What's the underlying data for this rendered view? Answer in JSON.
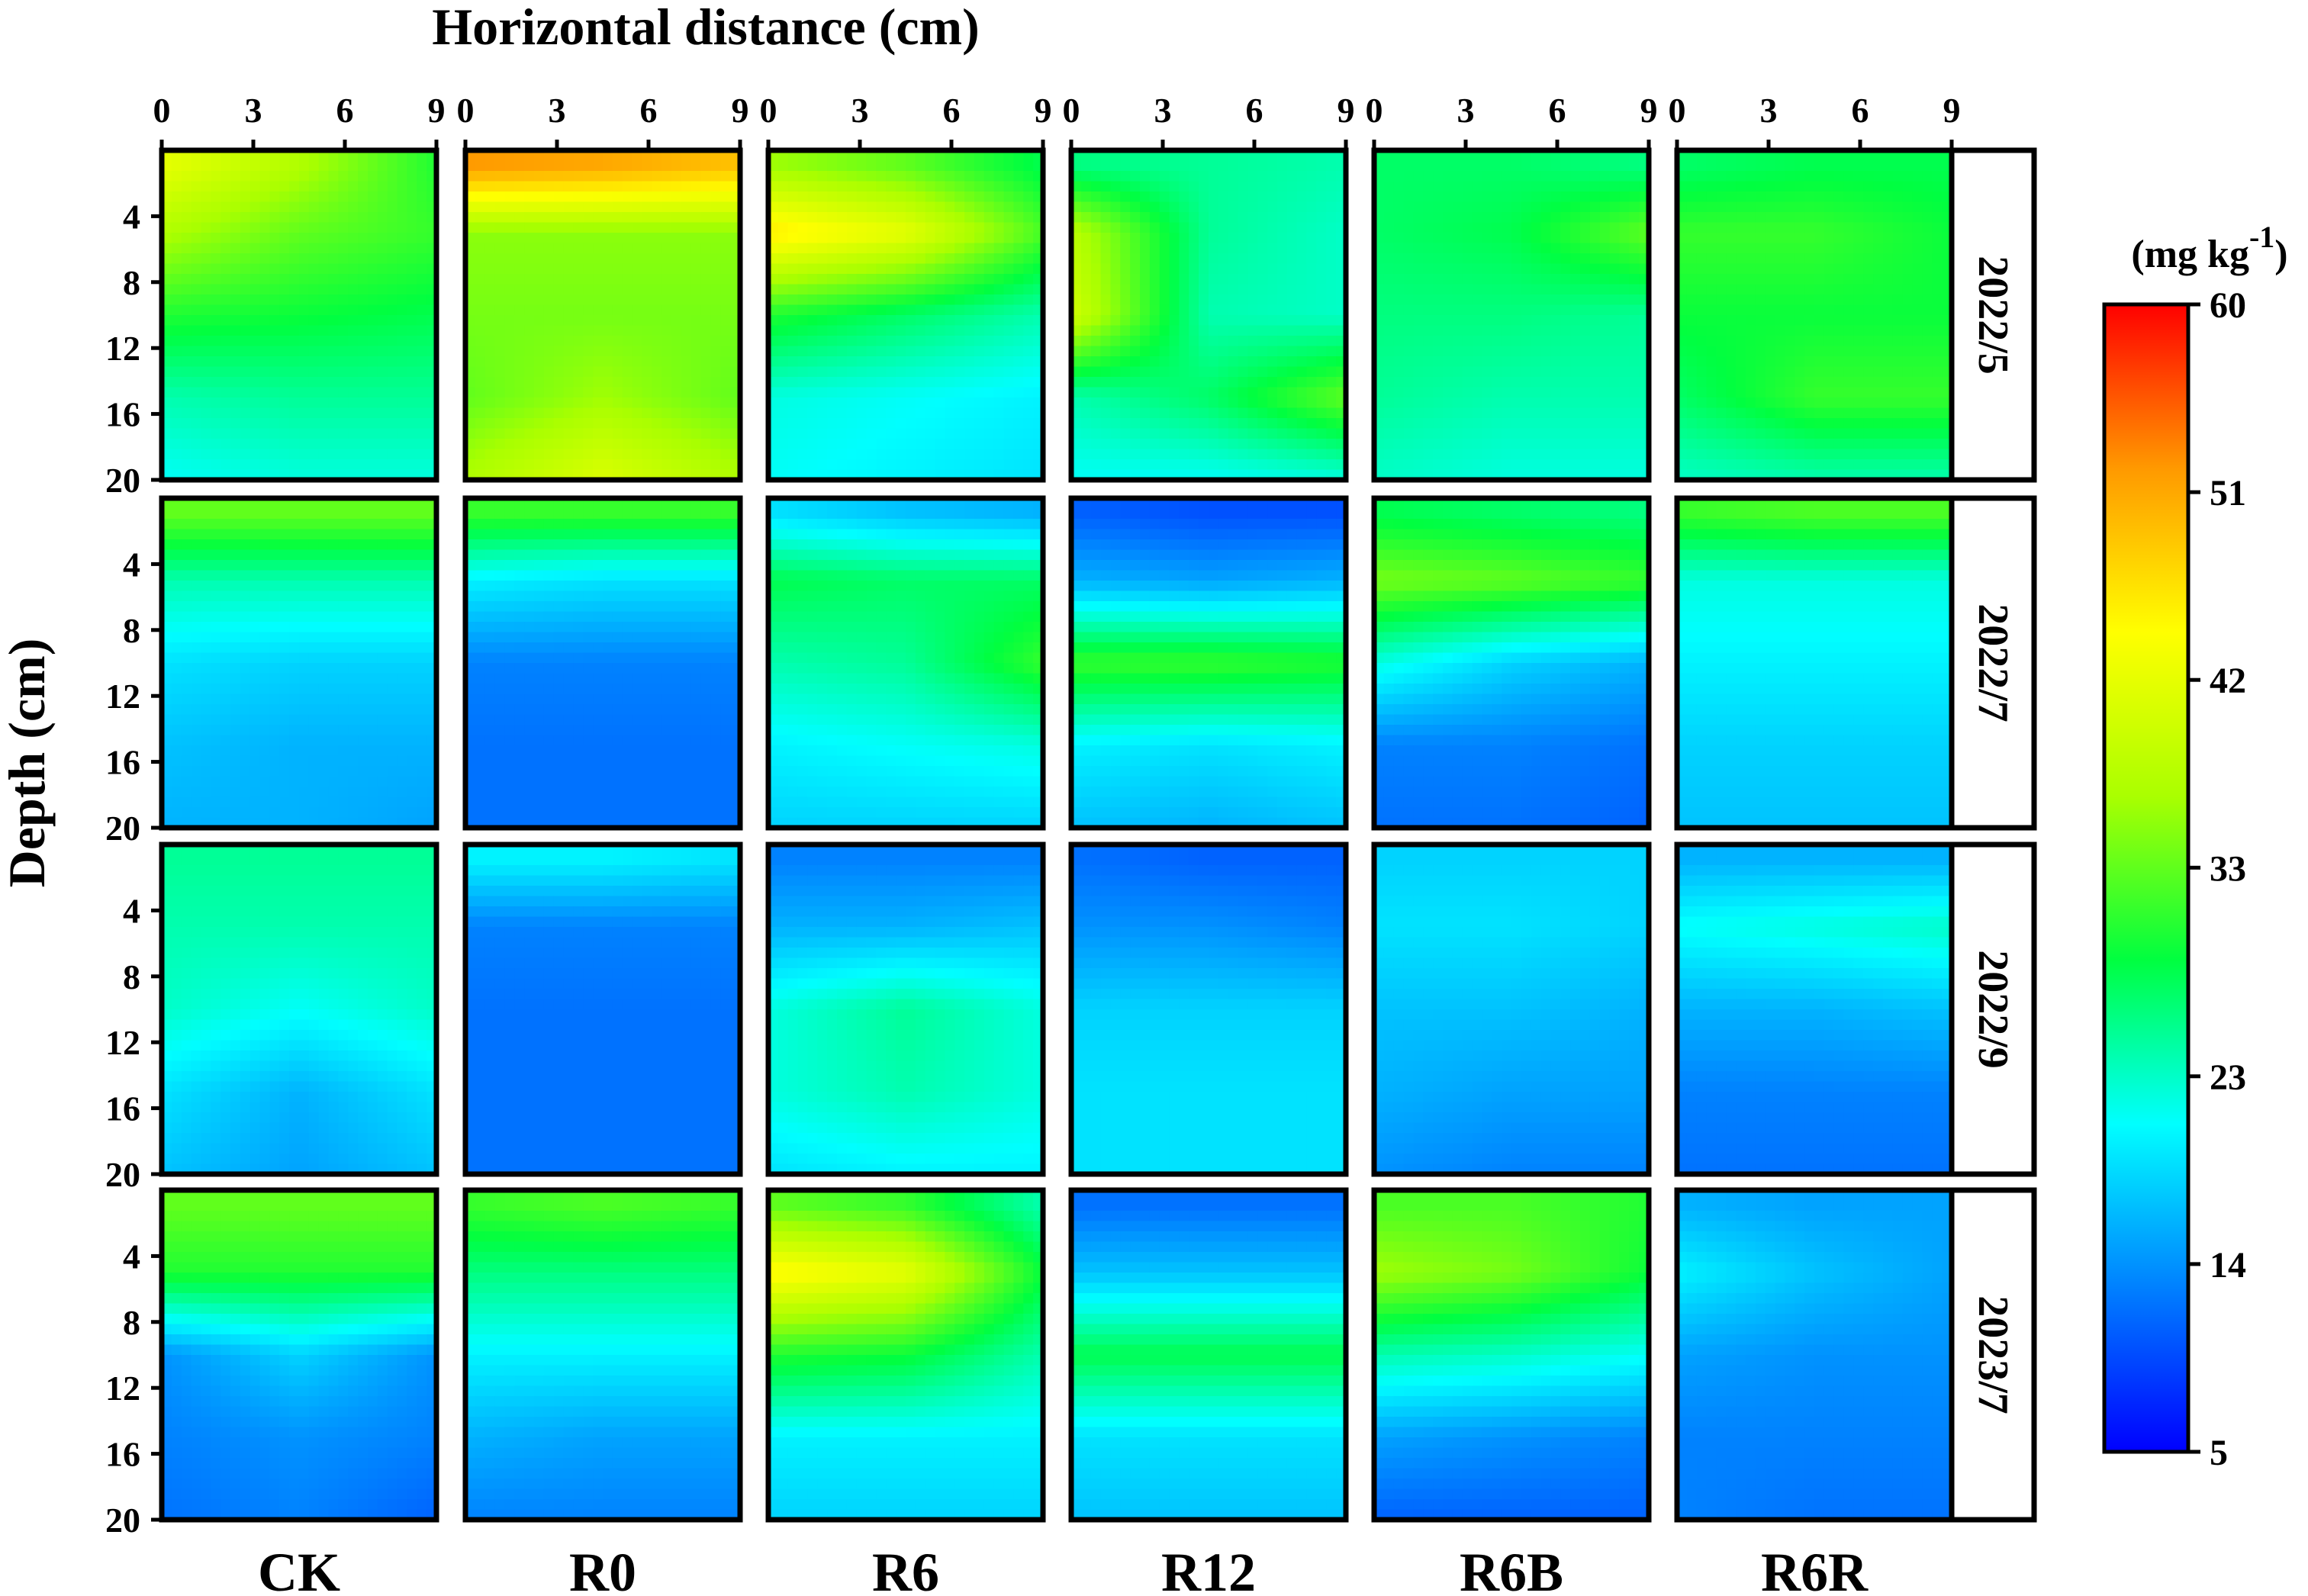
{
  "chart_data": {
    "type": "heatmap",
    "title": "",
    "xlabel": "Horizontal distance (cm)",
    "ylabel": "Depth (cm)",
    "x_ticks": [
      0,
      3,
      6,
      9
    ],
    "y_ticks": [
      4,
      8,
      12,
      16,
      20
    ],
    "xlim": [
      0,
      9
    ],
    "ylim": [
      0,
      20
    ],
    "x": [
      0,
      4.5,
      9
    ],
    "y": [
      1,
      5,
      10,
      15,
      20
    ],
    "treatments": [
      "CK",
      "R0",
      "R6",
      "R12",
      "R6B",
      "R6R"
    ],
    "dates": [
      "2022/5",
      "2022/7",
      "2022/9",
      "2023/7"
    ],
    "colorbar": {
      "label": "(mg kg-1)",
      "label_main": "(mg kg",
      "label_sup": "-1",
      "label_close": ")",
      "min": 5,
      "max": 60,
      "ticks": [
        5,
        14,
        23,
        33,
        42,
        51,
        60
      ],
      "colors": [
        "#0000ff",
        "#0080ff",
        "#00ffff",
        "#00ff40",
        "#aaff00",
        "#ffff00",
        "#ff9900",
        "#ff0000"
      ]
    },
    "panels": [
      {
        "date": "2022/5",
        "treatment": "CK",
        "z": [
          [
            42,
            37,
            30
          ],
          [
            37,
            33,
            31
          ],
          [
            30,
            29,
            28
          ],
          [
            24,
            25,
            25
          ],
          [
            21,
            22,
            22
          ]
        ]
      },
      {
        "date": "2022/5",
        "treatment": "R0",
        "z": [
          [
            52,
            51,
            49
          ],
          [
            35,
            35,
            35
          ],
          [
            34,
            34,
            34
          ],
          [
            33,
            36,
            33
          ],
          [
            37,
            41,
            37
          ]
        ]
      },
      {
        "date": "2022/5",
        "treatment": "R6",
        "z": [
          [
            36,
            33,
            28
          ],
          [
            46,
            42,
            32
          ],
          [
            30,
            27,
            24
          ],
          [
            22,
            21,
            20
          ],
          [
            21,
            20,
            19
          ]
        ]
      },
      {
        "date": "2022/5",
        "treatment": "R12",
        "z": [
          [
            26,
            25,
            24
          ],
          [
            38,
            25,
            23
          ],
          [
            40,
            24,
            23
          ],
          [
            24,
            27,
            33
          ],
          [
            21,
            21,
            22
          ]
        ]
      },
      {
        "date": "2022/5",
        "treatment": "R6B",
        "z": [
          [
            27,
            27,
            26
          ],
          [
            27,
            28,
            33
          ],
          [
            26,
            26,
            25
          ],
          [
            25,
            24,
            24
          ],
          [
            23,
            22,
            22
          ]
        ]
      },
      {
        "date": "2022/5",
        "treatment": "R6R",
        "z": [
          [
            27,
            28,
            28
          ],
          [
            31,
            31,
            29
          ],
          [
            29,
            29,
            29
          ],
          [
            27,
            31,
            31
          ],
          [
            23,
            24,
            24
          ]
        ]
      },
      {
        "date": "2022/7",
        "treatment": "CK",
        "z": [
          [
            33,
            33,
            33
          ],
          [
            24,
            24,
            24
          ],
          [
            19,
            18,
            18
          ],
          [
            17,
            16,
            16
          ],
          [
            16,
            16,
            15
          ]
        ]
      },
      {
        "date": "2022/7",
        "treatment": "R0",
        "z": [
          [
            31,
            31,
            31
          ],
          [
            20,
            19,
            19
          ],
          [
            13,
            13,
            13
          ],
          [
            12,
            12,
            12
          ],
          [
            12,
            12,
            12
          ]
        ]
      },
      {
        "date": "2022/7",
        "treatment": "R6",
        "z": [
          [
            19,
            17,
            16
          ],
          [
            28,
            27,
            27
          ],
          [
            24,
            25,
            31
          ],
          [
            20,
            21,
            22
          ],
          [
            18,
            18,
            18
          ]
        ]
      },
      {
        "date": "2022/7",
        "treatment": "R12",
        "z": [
          [
            11,
            10,
            10
          ],
          [
            16,
            15,
            16
          ],
          [
            31,
            31,
            30
          ],
          [
            20,
            19,
            20
          ],
          [
            17,
            16,
            17
          ]
        ]
      },
      {
        "date": "2022/7",
        "treatment": "R6B",
        "z": [
          [
            28,
            27,
            26
          ],
          [
            34,
            33,
            31
          ],
          [
            22,
            18,
            16
          ],
          [
            13,
            13,
            12
          ],
          [
            12,
            12,
            11
          ]
        ]
      },
      {
        "date": "2022/7",
        "treatment": "R6R",
        "z": [
          [
            31,
            32,
            32
          ],
          [
            22,
            22,
            22
          ],
          [
            20,
            20,
            20
          ],
          [
            18,
            18,
            18
          ],
          [
            17,
            17,
            17
          ]
        ]
      },
      {
        "date": "2022/9",
        "treatment": "CK",
        "z": [
          [
            25,
            25,
            25
          ],
          [
            24,
            24,
            24
          ],
          [
            23,
            21,
            23
          ],
          [
            19,
            16,
            19
          ],
          [
            17,
            15,
            17
          ]
        ]
      },
      {
        "date": "2022/9",
        "treatment": "R0",
        "z": [
          [
            20,
            20,
            19
          ],
          [
            13,
            13,
            13
          ],
          [
            12,
            12,
            12
          ],
          [
            12,
            12,
            12
          ],
          [
            12,
            12,
            12
          ]
        ]
      },
      {
        "date": "2022/9",
        "treatment": "R6",
        "z": [
          [
            13,
            13,
            13
          ],
          [
            16,
            16,
            17
          ],
          [
            22,
            25,
            22
          ],
          [
            22,
            24,
            22
          ],
          [
            19,
            20,
            20
          ]
        ]
      },
      {
        "date": "2022/9",
        "treatment": "R12",
        "z": [
          [
            12,
            11,
            11
          ],
          [
            14,
            14,
            13
          ],
          [
            18,
            18,
            18
          ],
          [
            19,
            19,
            19
          ],
          [
            19,
            19,
            19
          ]
        ]
      },
      {
        "date": "2022/9",
        "treatment": "R6B",
        "z": [
          [
            18,
            18,
            18
          ],
          [
            19,
            19,
            18
          ],
          [
            17,
            17,
            16
          ],
          [
            16,
            15,
            15
          ],
          [
            14,
            13,
            13
          ]
        ]
      },
      {
        "date": "2022/9",
        "treatment": "R6R",
        "z": [
          [
            16,
            16,
            16
          ],
          [
            21,
            22,
            23
          ],
          [
            16,
            16,
            17
          ],
          [
            13,
            13,
            13
          ],
          [
            12,
            12,
            12
          ]
        ]
      },
      {
        "date": "2023/7",
        "treatment": "CK",
        "z": [
          [
            33,
            33,
            33
          ],
          [
            30,
            30,
            30
          ],
          [
            14,
            18,
            14
          ],
          [
            13,
            14,
            13
          ],
          [
            12,
            13,
            11
          ]
        ]
      },
      {
        "date": "2023/7",
        "treatment": "R0",
        "z": [
          [
            31,
            32,
            31
          ],
          [
            26,
            26,
            26
          ],
          [
            20,
            20,
            20
          ],
          [
            16,
            15,
            15
          ],
          [
            13,
            13,
            13
          ]
        ]
      },
      {
        "date": "2023/7",
        "treatment": "R6",
        "z": [
          [
            33,
            31,
            24
          ],
          [
            45,
            42,
            29
          ],
          [
            30,
            29,
            24
          ],
          [
            20,
            20,
            20
          ],
          [
            18,
            18,
            18
          ]
        ]
      },
      {
        "date": "2023/7",
        "treatment": "R12",
        "z": [
          [
            12,
            12,
            12
          ],
          [
            17,
            17,
            17
          ],
          [
            28,
            28,
            28
          ],
          [
            19,
            19,
            19
          ],
          [
            17,
            17,
            17
          ]
        ]
      },
      {
        "date": "2023/7",
        "treatment": "R6B",
        "z": [
          [
            32,
            32,
            30
          ],
          [
            36,
            34,
            29
          ],
          [
            24,
            23,
            21
          ],
          [
            15,
            14,
            13
          ],
          [
            11,
            11,
            11
          ]
        ]
      },
      {
        "date": "2023/7",
        "treatment": "R6R",
        "z": [
          [
            16,
            15,
            15
          ],
          [
            20,
            17,
            15
          ],
          [
            15,
            14,
            14
          ],
          [
            13,
            13,
            13
          ],
          [
            13,
            12,
            12
          ]
        ]
      }
    ]
  }
}
